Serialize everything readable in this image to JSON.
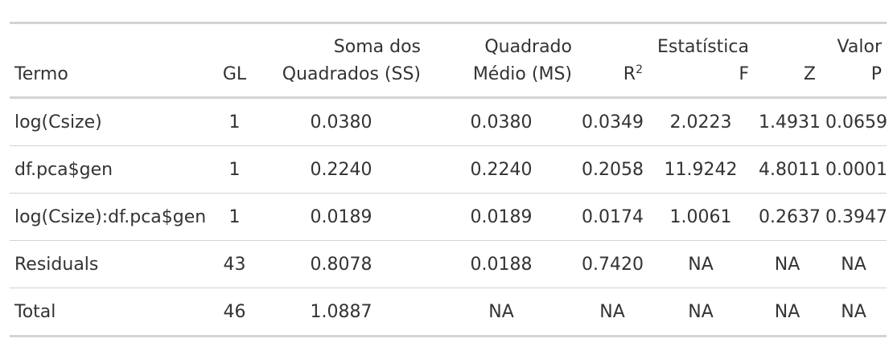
{
  "table": {
    "headers": [
      {
        "lines": [
          "Termo"
        ]
      },
      {
        "lines": [
          "GL"
        ]
      },
      {
        "lines": [
          "Soma dos",
          "Quadrados (SS)"
        ]
      },
      {
        "lines": [
          "Quadrado",
          "Médio (MS)"
        ]
      },
      {
        "lines": [
          "R²"
        ]
      },
      {
        "lines": [
          "Estatística",
          "F"
        ]
      },
      {
        "lines": [
          "Z"
        ]
      },
      {
        "lines": [
          "Valor",
          "P"
        ]
      }
    ],
    "r2_base": "R",
    "r2_sup": "2",
    "rows": [
      [
        "log(Csize)",
        "1",
        "0.0380",
        "0.0380",
        "0.0349",
        "2.0223",
        "1.4931",
        "0.0659"
      ],
      [
        "df.pca$gen",
        "1",
        "0.2240",
        "0.2240",
        "0.2058",
        "11.9242",
        "4.8011",
        "0.0001"
      ],
      [
        "log(Csize):df.pca$gen",
        "1",
        "0.0189",
        "0.0189",
        "0.0174",
        "1.0061",
        "0.2637",
        "0.3947"
      ],
      [
        "Residuals",
        "43",
        "0.8078",
        "0.0188",
        "0.7420",
        "NA",
        "NA",
        "NA"
      ],
      [
        "Total",
        "46",
        "1.0887",
        "NA",
        "NA",
        "NA",
        "NA",
        "NA"
      ]
    ]
  },
  "colors": {
    "text": "#333333",
    "rule": "#d3d3d3"
  }
}
